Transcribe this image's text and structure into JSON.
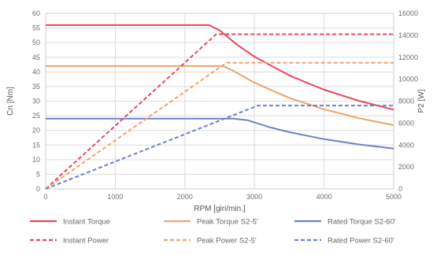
{
  "chart_data": {
    "type": "line",
    "xlabel": "RPM [giri/min.]",
    "ylabel_left": "Cn [Nm]",
    "ylabel_right": "P2 [W]",
    "xlim": [
      0,
      5000
    ],
    "ylim_left": [
      0,
      60
    ],
    "ylim_right": [
      0,
      16000
    ],
    "x_ticks": [
      "0",
      "1000",
      "2000",
      "3000",
      "4000",
      "5000"
    ],
    "y_ticks_left": [
      "0",
      "5",
      "10",
      "15",
      "20",
      "25",
      "30",
      "35",
      "40",
      "45",
      "50",
      "55",
      "60"
    ],
    "y_ticks_right": [
      "0",
      "2000",
      "4000",
      "6000",
      "8000",
      "10000",
      "12000",
      "14000",
      "16000"
    ],
    "grid": true,
    "legend_position": "bottom",
    "series": [
      {
        "name": "Instant Torque",
        "axis": "left",
        "style": "solid",
        "color": "#e8475c",
        "x": [
          0,
          2350,
          2500,
          2750,
          3000,
          3500,
          4000,
          4500,
          5000
        ],
        "y": [
          56,
          56,
          54.2,
          49.3,
          45.2,
          38.8,
          33.9,
          30.1,
          27.1
        ]
      },
      {
        "name": "Peak Torque S2-5'",
        "axis": "left",
        "style": "solid",
        "color": "#f0a36a",
        "x": [
          0,
          2550,
          2700,
          3000,
          3500,
          4000,
          4500,
          5000
        ],
        "y": [
          42,
          42,
          40.3,
          36.3,
          31.1,
          27.2,
          24.2,
          21.8
        ]
      },
      {
        "name": "Rated Torque S2-60'",
        "axis": "left",
        "style": "solid",
        "color": "#6b82c6",
        "x": [
          0,
          2700,
          2900,
          3200,
          3500,
          4000,
          4500,
          5000
        ],
        "y": [
          24,
          24,
          23.5,
          21.2,
          19.4,
          17.0,
          15.2,
          13.8
        ]
      },
      {
        "name": "Instant Power",
        "axis": "right",
        "style": "dashed",
        "color": "#e8475c",
        "x": [
          0,
          2450,
          5000
        ],
        "y": [
          0,
          14100,
          14100
        ]
      },
      {
        "name": "Peak Power S2-5'",
        "axis": "right",
        "style": "dashed",
        "color": "#f0a36a",
        "x": [
          0,
          2600,
          5000
        ],
        "y": [
          0,
          11500,
          11500
        ]
      },
      {
        "name": "Rated Power S2-60'",
        "axis": "right",
        "style": "dashed",
        "color": "#6b82c6",
        "x": [
          0,
          3050,
          5000
        ],
        "y": [
          0,
          7600,
          7600
        ]
      }
    ]
  }
}
